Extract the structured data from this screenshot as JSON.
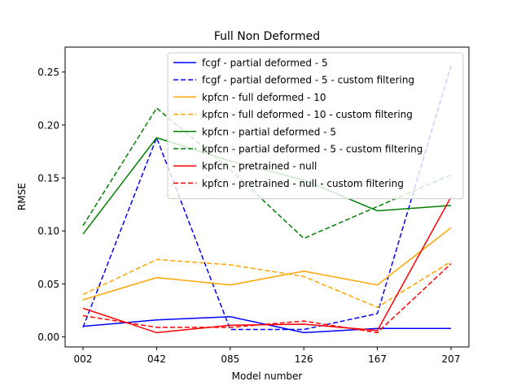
{
  "chart_data": {
    "type": "line",
    "title": "Full Non Deformed",
    "xlabel": "Model number",
    "ylabel": "RMSE",
    "categories": [
      "002",
      "042",
      "085",
      "126",
      "167",
      "207"
    ],
    "ylim": [
      -0.0095,
      0.2735
    ],
    "yticks": [
      0.0,
      0.05,
      0.1,
      0.15,
      0.2,
      0.25
    ],
    "ytick_labels": [
      "0.00",
      "0.05",
      "0.10",
      "0.15",
      "0.20",
      "0.25"
    ],
    "grid": false,
    "legend_position": "top-right",
    "series": [
      {
        "name": "fcgf - partial deformed - 5",
        "color": "#0000ff",
        "dash": "solid",
        "values": [
          0.01,
          0.016,
          0.019,
          0.004,
          0.008,
          0.008
        ]
      },
      {
        "name": "fcgf - partial deformed - 5 - custom filtering",
        "color": "#0000ff",
        "dash": "dashed",
        "values": [
          0.009,
          0.188,
          0.007,
          0.007,
          0.022,
          0.256
        ]
      },
      {
        "name": "kpfcn - full deformed - 10",
        "color": "#ffa500",
        "dash": "solid",
        "values": [
          0.035,
          0.056,
          0.049,
          0.062,
          0.049,
          0.103
        ]
      },
      {
        "name": "kpfcn - full deformed - 10 - custom filtering",
        "color": "#ffa500",
        "dash": "dashed",
        "values": [
          0.04,
          0.073,
          0.068,
          0.057,
          0.028,
          0.071
        ]
      },
      {
        "name": "kpfcn - partial deformed - 5",
        "color": "#008000",
        "dash": "solid",
        "values": [
          0.097,
          0.188,
          0.166,
          0.148,
          0.119,
          0.124
        ]
      },
      {
        "name": "kpfcn - partial deformed - 5 - custom filtering",
        "color": "#008000",
        "dash": "dashed",
        "values": [
          0.105,
          0.216,
          0.158,
          0.093,
          0.123,
          0.153
        ]
      },
      {
        "name": "kpfcn - pretrained - null",
        "color": "#ff0000",
        "dash": "solid",
        "values": [
          0.027,
          0.004,
          0.011,
          0.012,
          0.006,
          0.132
        ]
      },
      {
        "name": "kpfcn - pretrained - null - custom filtering",
        "color": "#ff0000",
        "dash": "dashed",
        "values": [
          0.02,
          0.009,
          0.009,
          0.015,
          0.004,
          0.069
        ]
      }
    ]
  }
}
